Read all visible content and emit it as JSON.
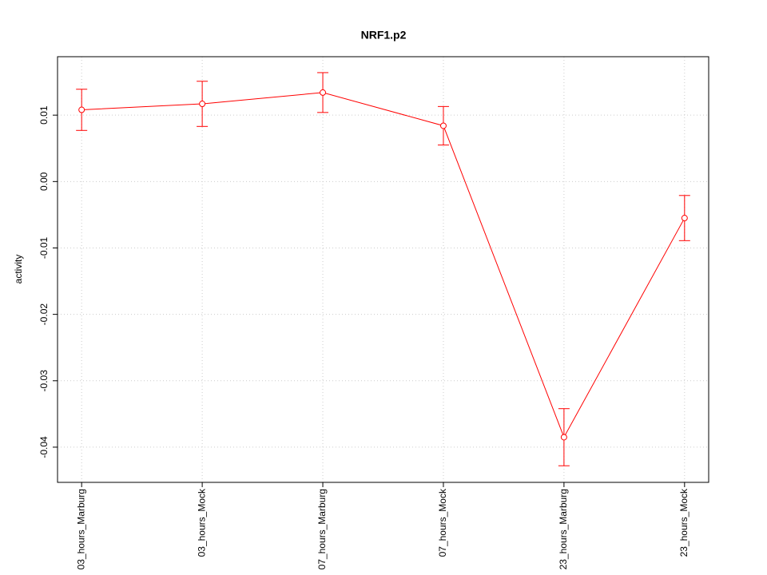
{
  "chart_data": {
    "type": "line",
    "title": "NRF1.p2",
    "ylabel": "activity",
    "categories": [
      "03_hours_Marburg",
      "03_hours_Mock",
      "07_hours_Marburg",
      "07_hours_Mock",
      "23_hours_Marburg",
      "23_hours_Mock"
    ],
    "values": [
      0.0108,
      0.0117,
      0.0134,
      0.0084,
      -0.0385,
      -0.0055
    ],
    "errors": [
      0.0031,
      0.0034,
      0.003,
      0.0029,
      0.0043,
      0.0034
    ],
    "color": "#ff0000",
    "ylim": [
      -0.0453,
      0.0188
    ],
    "yticks": [
      -0.04,
      -0.03,
      -0.02,
      -0.01,
      {
        "value": 0,
        "label": "0.00"
      },
      0.01
    ],
    "grid": true
  }
}
